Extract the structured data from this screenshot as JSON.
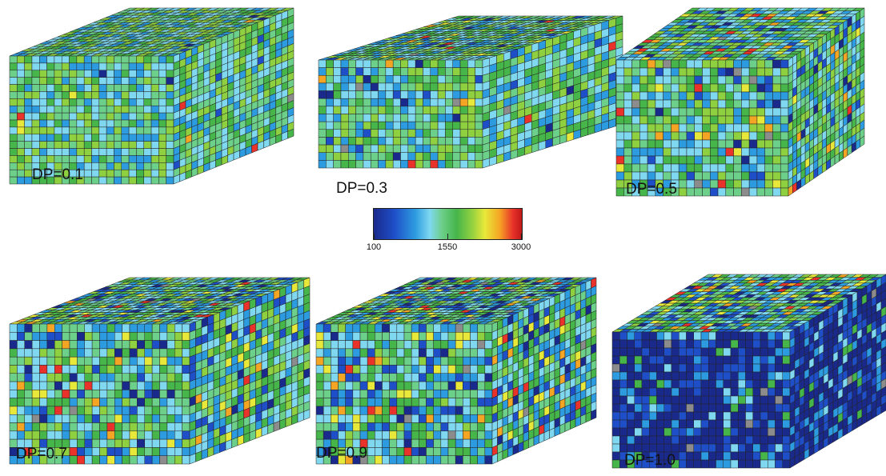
{
  "panels": [
    {
      "label": "DP=0.1",
      "dp": 0.1
    },
    {
      "label": "DP=0.3",
      "dp": 0.3
    },
    {
      "label": "DP=0.5",
      "dp": 0.5
    },
    {
      "label": "DP=0.7",
      "dp": 0.7
    },
    {
      "label": "DP=0.9",
      "dp": 0.9
    },
    {
      "label": "DP=1.0",
      "dp": 1.0
    }
  ],
  "colorbar": {
    "min_label": "100",
    "mid_label": "1550",
    "max_label": "3000"
  },
  "colors": {
    "palette": [
      "#1a2a8c",
      "#1f4fc8",
      "#2d9be0",
      "#7fd8f0",
      "#6ccf8a",
      "#46b54a",
      "#8fd040",
      "#e8e83a",
      "#f5a524",
      "#e8322a",
      "#8c8c8c"
    ],
    "grid_line": "#222222"
  }
}
